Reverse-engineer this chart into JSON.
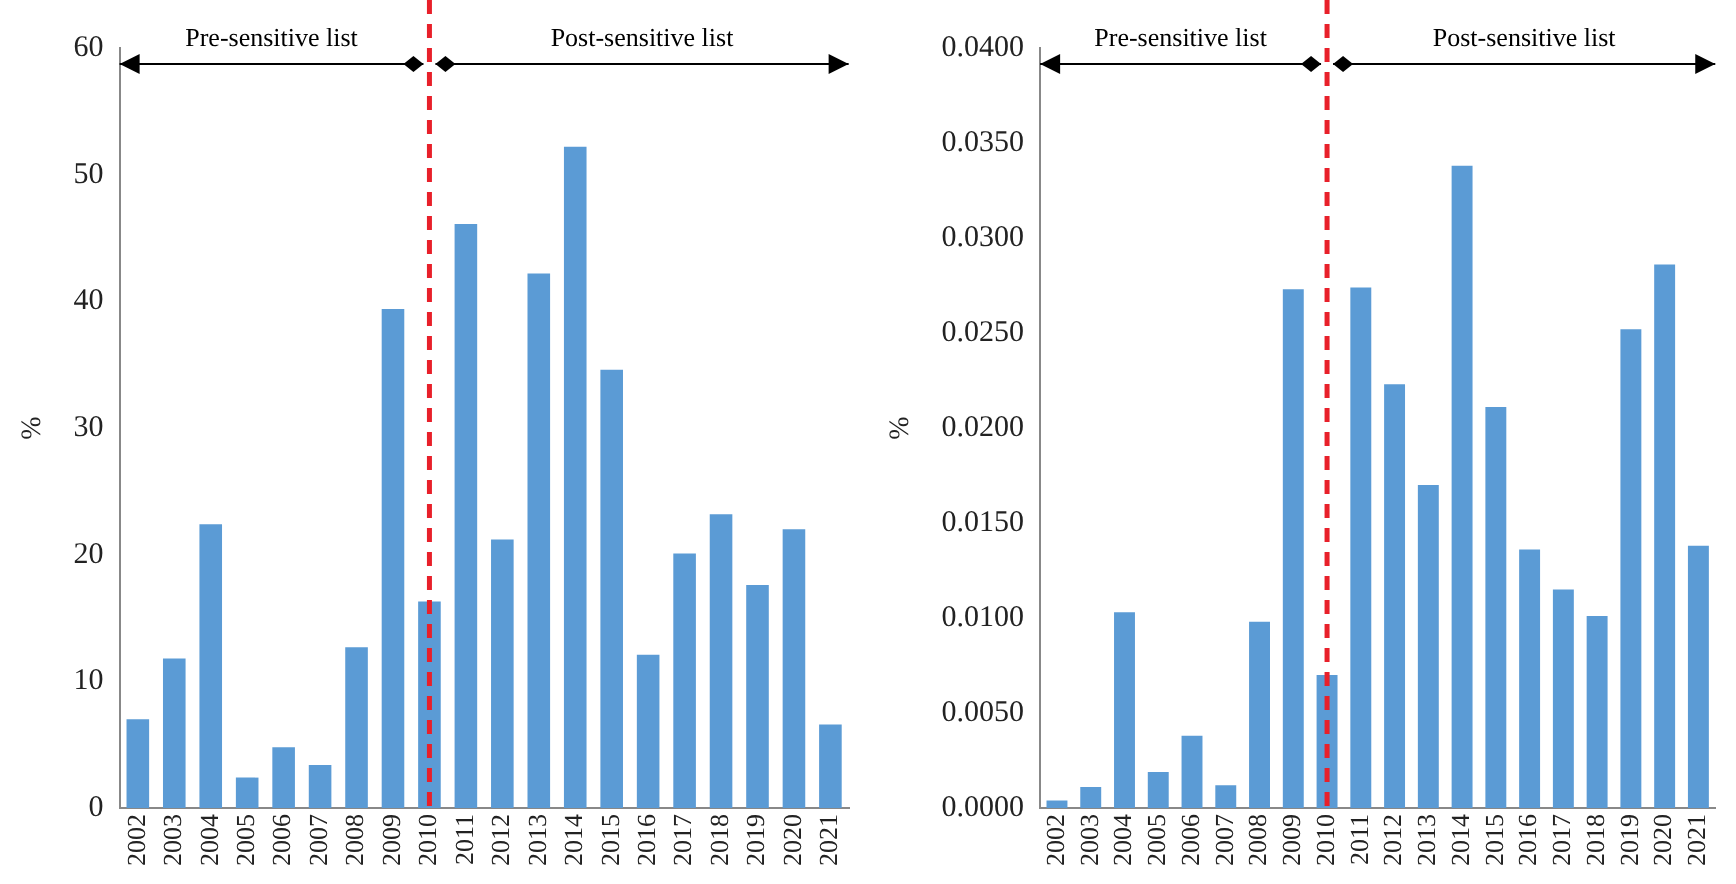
{
  "chart_data": [
    {
      "type": "bar",
      "ylabel": "%",
      "categories": [
        "2002",
        "2003",
        "2004",
        "2005",
        "2006",
        "2007",
        "2008",
        "2009",
        "2010",
        "2011",
        "2012",
        "2013",
        "2014",
        "2015",
        "2016",
        "2017",
        "2018",
        "2019",
        "2020",
        "2021"
      ],
      "values": [
        7.0,
        11.8,
        22.4,
        2.4,
        4.8,
        3.4,
        12.7,
        39.4,
        16.3,
        46.1,
        21.2,
        42.2,
        52.2,
        34.6,
        12.1,
        20.1,
        23.2,
        17.6,
        22.0,
        6.6
      ],
      "color": "#5b9bd5",
      "ylim": [
        0,
        60
      ],
      "yticks": [
        0,
        10,
        20,
        30,
        40,
        50,
        60
      ],
      "grid": false,
      "legend": false,
      "ref_lines": [
        {
          "axis": "x",
          "value": "2010",
          "color": "#e8202a",
          "line_style": "dashed"
        }
      ],
      "annotations": [
        "Pre-sensitive list",
        "Post-sensitive list"
      ]
    },
    {
      "type": "bar",
      "ylabel": "%",
      "categories": [
        "2002",
        "2003",
        "2004",
        "2005",
        "2006",
        "2007",
        "2008",
        "2009",
        "2010",
        "2011",
        "2012",
        "2013",
        "2014",
        "2015",
        "2016",
        "2017",
        "2018",
        "2019",
        "2020",
        "2021"
      ],
      "values": [
        0.0004,
        0.0011,
        0.0103,
        0.0019,
        0.0038,
        0.0012,
        0.0098,
        0.0273,
        0.007,
        0.0274,
        0.0223,
        0.017,
        0.0338,
        0.0211,
        0.0136,
        0.0115,
        0.0101,
        0.0252,
        0.0286,
        0.0138
      ],
      "color": "#5b9bd5",
      "ylim": [
        0,
        0.04
      ],
      "yticks": [
        {
          "value": 0,
          "label": "0.0000"
        },
        {
          "value": 0.005,
          "label": "0.0050"
        },
        {
          "value": 0.01,
          "label": "0.0100"
        },
        {
          "value": 0.015,
          "label": "0.0150"
        },
        {
          "value": 0.02,
          "label": "0.0200"
        },
        {
          "value": 0.025,
          "label": "0.0250"
        },
        {
          "value": 0.03,
          "label": "0.0300"
        },
        {
          "value": 0.035,
          "label": "0.0350"
        },
        {
          "value": 0.04,
          "label": "0.0400"
        }
      ],
      "grid": false,
      "legend": false,
      "ref_lines": [
        {
          "axis": "x",
          "value": "2010",
          "color": "#e8202a",
          "line_style": "dashed"
        }
      ],
      "annotations": [
        "Pre-sensitive list",
        "Post-sensitive list"
      ]
    }
  ]
}
